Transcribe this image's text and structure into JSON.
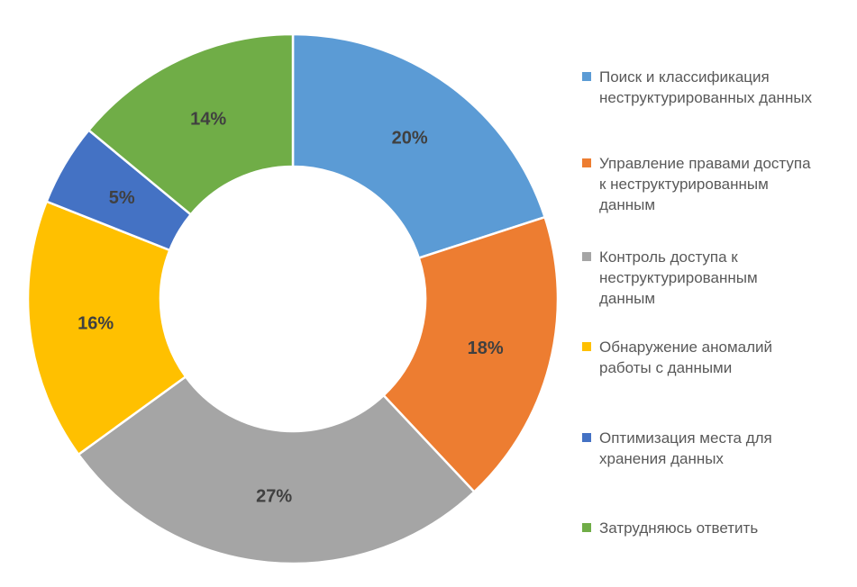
{
  "chart_data": {
    "type": "pie",
    "subtype": "donut",
    "title": "",
    "legend_position": "right",
    "start_angle": 0,
    "direction": "clockwise",
    "hole_ratio": 0.5,
    "background": "#FFFFFF",
    "categories": [
      "Поиск и классификация неструктурированных данных",
      "Управление правами доступа к неструктурированным данным",
      "Контроль доступа к неструктурированным данным",
      "Обнаружение аномалий работы с данными",
      "Оптимизация места для хранения данных",
      "Затрудняюсь ответить"
    ],
    "values": [
      20,
      18,
      27,
      16,
      5,
      14
    ],
    "slice_labels": [
      "20%",
      "18%",
      "27%",
      "16%",
      "5%",
      "14%"
    ],
    "colors": [
      "#5B9BD5",
      "#ED7D31",
      "#A5A5A5",
      "#FFC000",
      "#4472C4",
      "#70AD47"
    ],
    "legend_wrapped": [
      "Поиск и классификация\nнеструктурированных данных",
      "Управление правами доступа\nк неструктурированным\nданным",
      "Контроль доступа к\nнеструктурированным\nданным",
      "Обнаружение аномалий\nработы с данными",
      "Оптимизация места для\nхранения данных",
      "Затрудняюсь ответить"
    ],
    "slice_label_color": "#404040",
    "legend_text_color": "#595959",
    "slice_border_color": "#FFFFFF"
  }
}
